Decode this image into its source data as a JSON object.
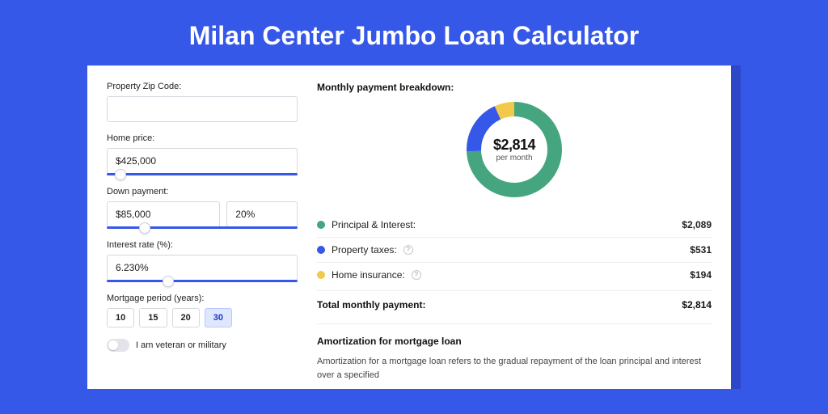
{
  "colors": {
    "page_bg": "#3658e8",
    "card_shadow": "#2c48c8",
    "card_bg": "#ffffff",
    "input_border": "#d7d7de",
    "text_primary": "#111111",
    "text_label": "#222222",
    "chip_active_bg": "#dfe7ff",
    "chip_active_border": "#b9c8ff",
    "chip_active_text": "#1a39c9"
  },
  "page_title": "Milan Center Jumbo Loan Calculator",
  "form": {
    "zip_label": "Property Zip Code:",
    "zip_value": "",
    "home_price_label": "Home price:",
    "home_price_value": "$425,000",
    "home_price_slider_pct": 7,
    "down_payment_label": "Down payment:",
    "down_payment_amount": "$85,000",
    "down_payment_pct": "20%",
    "down_payment_slider_pct": 20,
    "interest_label": "Interest rate (%):",
    "interest_value": "6.230%",
    "interest_slider_pct": 32,
    "mortgage_period_label": "Mortgage period (years):",
    "mortgage_period_options": [
      "10",
      "15",
      "20",
      "30"
    ],
    "mortgage_period_selected": "30",
    "veteran_label": "I am veteran or military",
    "veteran_on": false
  },
  "breakdown": {
    "heading": "Monthly payment breakdown:",
    "donut": {
      "center_amount": "$2,814",
      "center_sub": "per month",
      "stroke_width": 18,
      "radius": 50,
      "slices": [
        {
          "key": "principal_interest",
          "label": "Principal & Interest:",
          "value": 2089,
          "value_text": "$2,089",
          "color": "#45a57e",
          "has_info": false
        },
        {
          "key": "property_taxes",
          "label": "Property taxes:",
          "value": 531,
          "value_text": "$531",
          "color": "#3658e8",
          "has_info": true
        },
        {
          "key": "home_insurance",
          "label": "Home insurance:",
          "value": 194,
          "value_text": "$194",
          "color": "#f3c94c",
          "has_info": true
        }
      ]
    },
    "total_label": "Total monthly payment:",
    "total_value": "$2,814"
  },
  "amortization": {
    "heading": "Amortization for mortgage loan",
    "body": "Amortization for a mortgage loan refers to the gradual repayment of the loan principal and interest over a specified"
  }
}
